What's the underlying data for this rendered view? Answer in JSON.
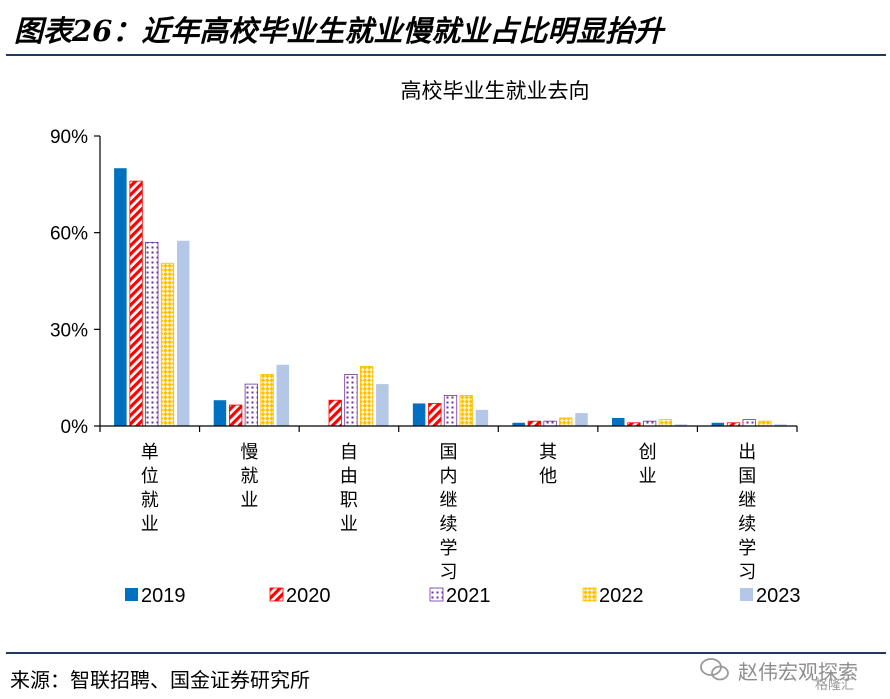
{
  "figure_title": "图表26：近年高校毕业生就业慢就业占比明显抬升",
  "source": "来源：智联招聘、国金证券研究所",
  "watermark": {
    "name": "赵伟宏观探索",
    "sub": "格隆汇"
  },
  "chart_data": {
    "type": "bar",
    "title": "高校毕业生就业去向",
    "categories": [
      "单位就业",
      "慢就业",
      "自由职业",
      "国内继续学习",
      "其他",
      "创业",
      "出国继续学习"
    ],
    "ylim": [
      0,
      90
    ],
    "yticks": [
      "0%",
      "30%",
      "60%",
      "90%"
    ],
    "ytick_values": [
      0,
      30,
      60,
      90
    ],
    "legend_position": "bottom",
    "series": [
      {
        "name": "2019",
        "color": "#0070c0",
        "pattern": "solid",
        "values": [
          80.0,
          8.0,
          0.0,
          7.0,
          1.0,
          2.5,
          1.0
        ]
      },
      {
        "name": "2020",
        "color": "#ff0000",
        "pattern": "diagonal",
        "values": [
          76.0,
          6.5,
          8.0,
          7.0,
          1.5,
          1.0,
          1.0
        ]
      },
      {
        "name": "2021",
        "color": "#7030a0",
        "pattern": "dots",
        "values": [
          57.0,
          13.0,
          16.0,
          9.5,
          1.5,
          1.5,
          2.0
        ]
      },
      {
        "name": "2022",
        "color": "#ffc000",
        "pattern": "check",
        "values": [
          50.5,
          16.0,
          18.5,
          9.5,
          2.5,
          2.0,
          1.5
        ]
      },
      {
        "name": "2023",
        "color": "#b4c7e7",
        "pattern": "solid",
        "values": [
          57.5,
          19.0,
          13.0,
          5.0,
          4.0,
          0.5,
          0.5
        ]
      }
    ]
  }
}
